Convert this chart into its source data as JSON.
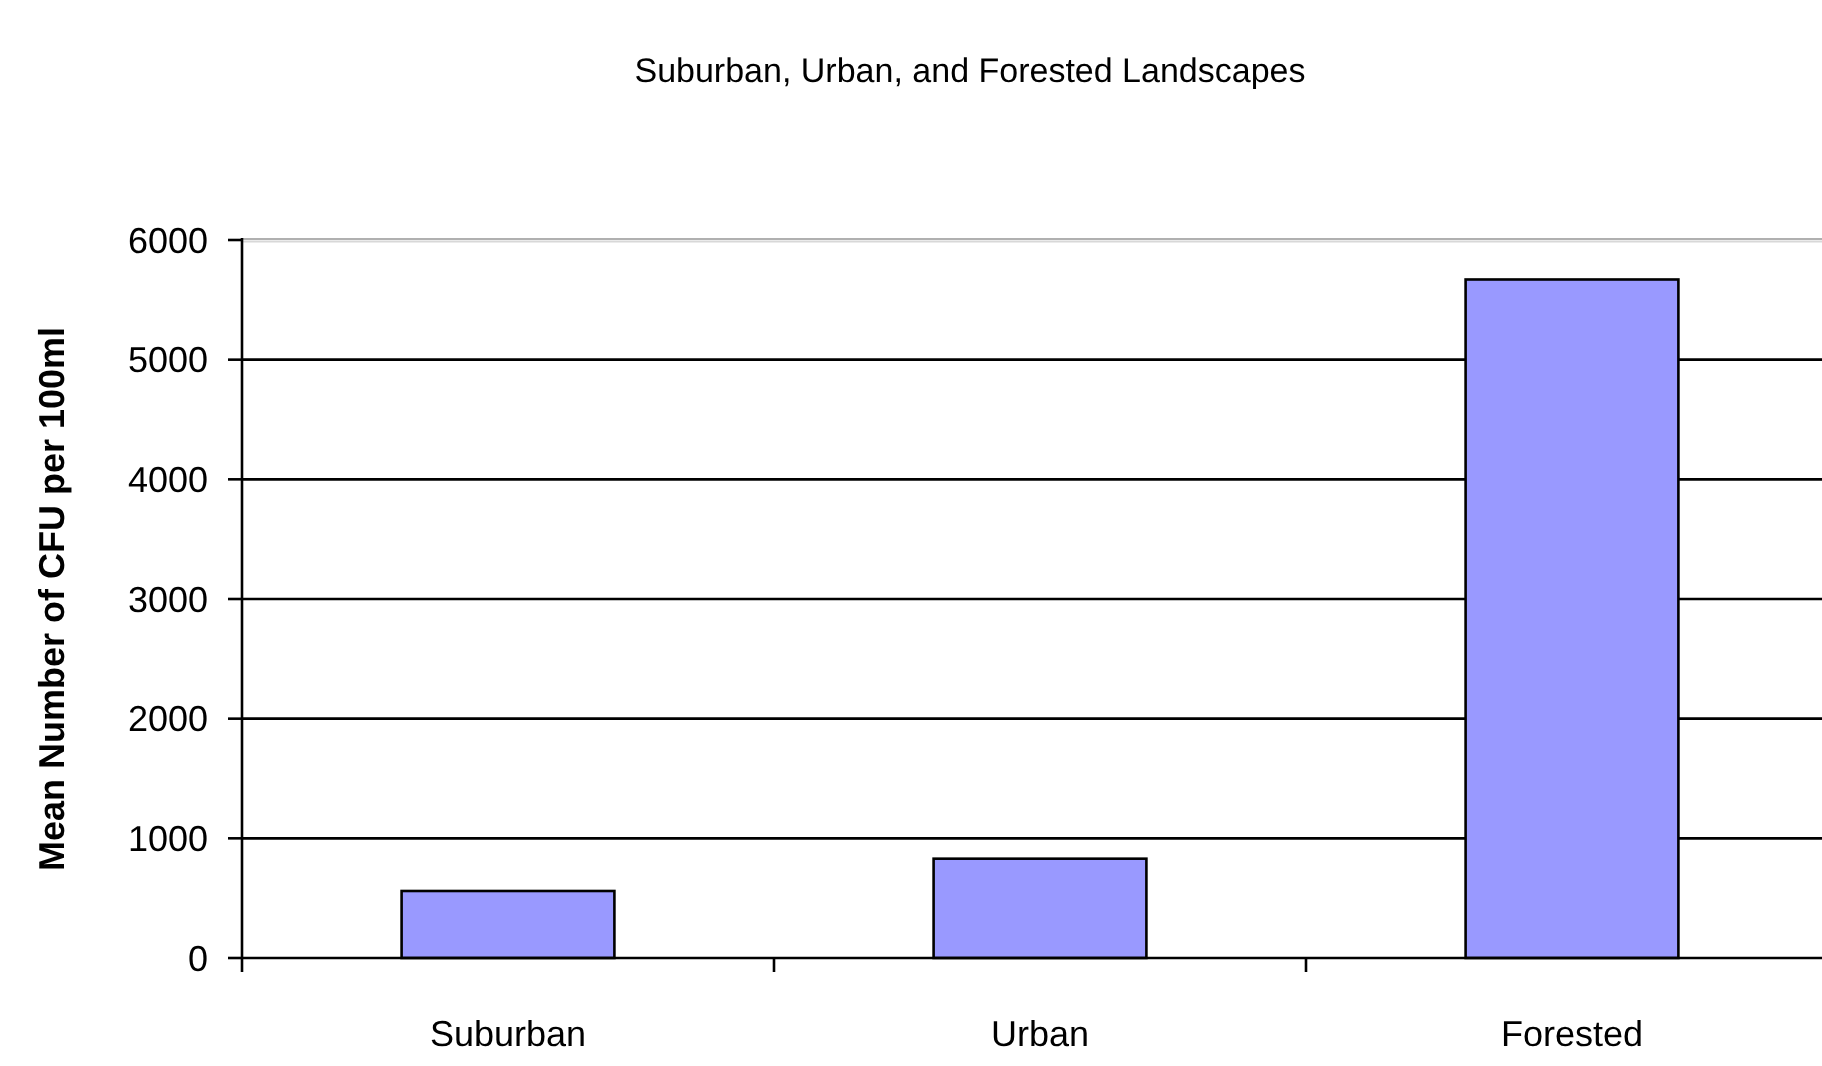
{
  "chart_data": {
    "type": "bar",
    "title": "Suburban, Urban, and Forested Landscapes",
    "ylabel": "Mean Number of CFU per 100ml",
    "categories": [
      "Suburban",
      "Urban",
      "Forested"
    ],
    "values": [
      560,
      830,
      5670
    ],
    "color": "#9999ff",
    "ylim": [
      0,
      6000
    ],
    "yticks": [
      0,
      1000,
      2000,
      3000,
      4000,
      5000,
      6000
    ],
    "grid": "y"
  }
}
